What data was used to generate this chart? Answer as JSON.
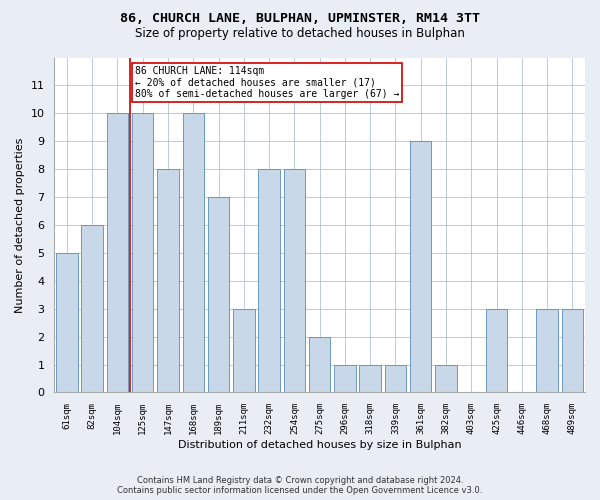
{
  "title_line1": "86, CHURCH LANE, BULPHAN, UPMINSTER, RM14 3TT",
  "title_line2": "Size of property relative to detached houses in Bulphan",
  "xlabel": "Distribution of detached houses by size in Bulphan",
  "ylabel": "Number of detached properties",
  "categories": [
    "61sqm",
    "82sqm",
    "104sqm",
    "125sqm",
    "147sqm",
    "168sqm",
    "189sqm",
    "211sqm",
    "232sqm",
    "254sqm",
    "275sqm",
    "296sqm",
    "318sqm",
    "339sqm",
    "361sqm",
    "382sqm",
    "403sqm",
    "425sqm",
    "446sqm",
    "468sqm",
    "489sqm"
  ],
  "values": [
    5,
    6,
    10,
    10,
    8,
    10,
    7,
    3,
    8,
    8,
    2,
    1,
    1,
    1,
    9,
    1,
    0,
    3,
    0,
    3,
    3
  ],
  "bar_color": "#c8d8e8",
  "bar_edge_color": "#5b8db8",
  "vline_x_index": 2.5,
  "vline_color": "#cc0000",
  "annotation_text": "86 CHURCH LANE: 114sqm\n← 20% of detached houses are smaller (17)\n80% of semi-detached houses are larger (67) →",
  "annotation_box_color": "#ffffff",
  "annotation_box_edge_color": "#cc0000",
  "ylim": [
    0,
    12
  ],
  "yticks": [
    0,
    1,
    2,
    3,
    4,
    5,
    6,
    7,
    8,
    9,
    10,
    11,
    12
  ],
  "footnote": "Contains HM Land Registry data © Crown copyright and database right 2024.\nContains public sector information licensed under the Open Government Licence v3.0.",
  "background_color": "#e8eef4",
  "plot_background_color": "#ffffff",
  "grid_color": "#aec4d4"
}
